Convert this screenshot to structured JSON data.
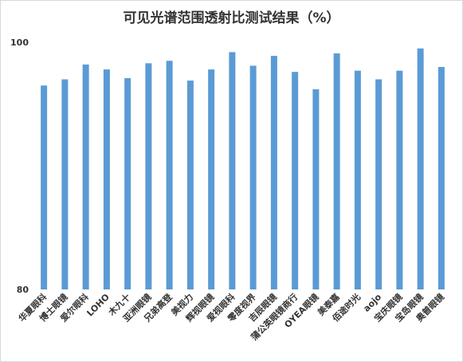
{
  "chart_data": {
    "type": "bar",
    "title": "可见光谱范围透射比测试结果（%）",
    "xlabel": "",
    "ylabel": "",
    "ylim": [
      80,
      100
    ],
    "yticks": [
      80,
      100
    ],
    "grid": false,
    "legend": "none",
    "bar_color": "#5b9bd5",
    "categories": [
      "华夏眼科",
      "博士眼镜",
      "爱尔眼科",
      "LOHO",
      "木九十",
      "亚洲眼镜",
      "兄弟高登",
      "美视力",
      "辉视眼镜",
      "爱视眼科",
      "零度视界",
      "吉辰眼镜",
      "蒲公英眼镜商行",
      "OYEA眼镜",
      "美泰嘉",
      "佰途时光",
      "aojo",
      "宝庆眼镜",
      "宝岛眼镜",
      "奥普眼镜"
    ],
    "values": [
      96.5,
      97.0,
      98.2,
      97.8,
      97.1,
      98.3,
      98.5,
      96.9,
      97.8,
      99.2,
      98.1,
      98.9,
      97.6,
      96.2,
      99.1,
      97.7,
      97.0,
      97.7,
      99.5,
      98.0
    ]
  }
}
